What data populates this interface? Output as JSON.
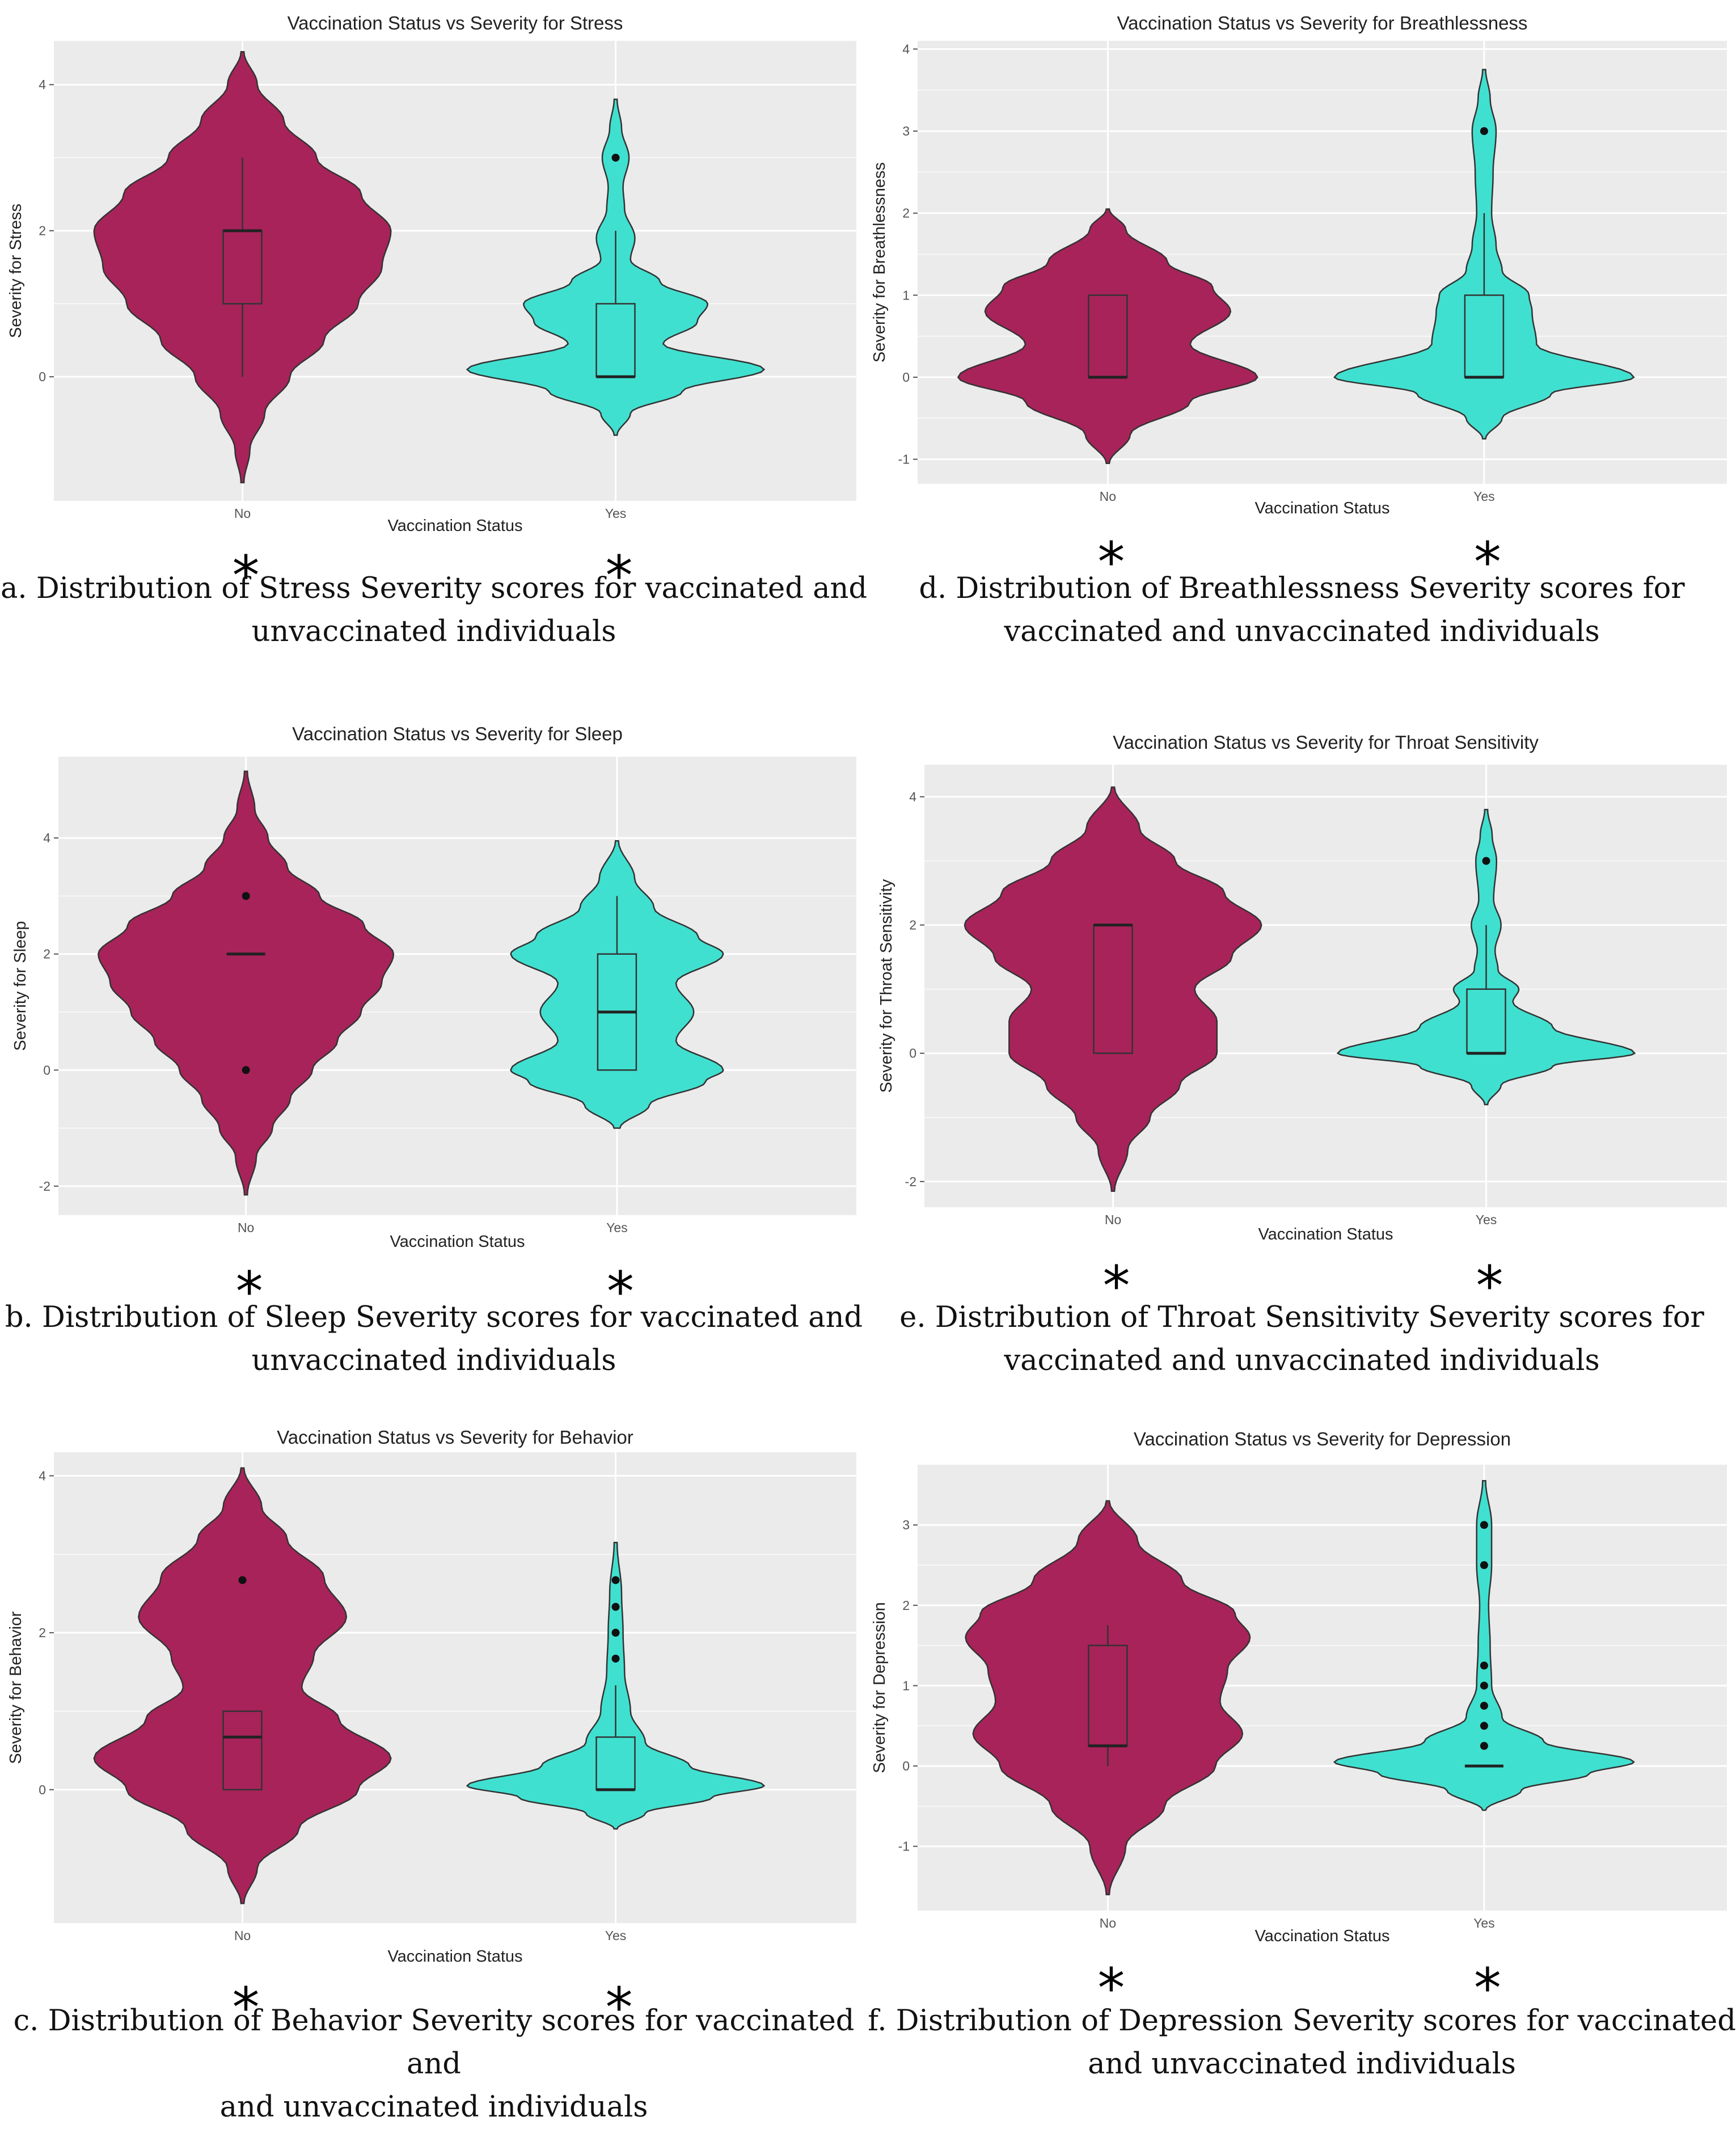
{
  "figure": {
    "colors": {
      "no": "#A8235A",
      "yes": "#40E0D0",
      "panel_bg": "#EBEBEB",
      "grid": "#FFFFFF",
      "outline": "#333333"
    },
    "asterisk": "*"
  },
  "chart_data": [
    {
      "id": "a",
      "type": "violin",
      "title": "Vaccination Status vs Severity for Stress",
      "xlabel": "Vaccination Status",
      "ylabel": "Severity for Stress",
      "categories": [
        "No",
        "Yes"
      ],
      "yticks": [
        "0",
        "2",
        "4"
      ],
      "ytick_values": [
        0,
        2,
        4
      ],
      "ylim": [
        -1.7,
        4.6
      ],
      "grid": true,
      "caption": [
        "a. Distribution of Stress Severity scores for vaccinated and",
        "unvaccinated individuals"
      ],
      "groups": [
        {
          "name": "No",
          "color": "#A8235A",
          "range": [
            -1.45,
            4.45
          ],
          "profile": [
            [
              -1.45,
              0.01
            ],
            [
              -1.0,
              0.05
            ],
            [
              -0.5,
              0.15
            ],
            [
              0,
              0.32
            ],
            [
              0.5,
              0.55
            ],
            [
              1.0,
              0.78
            ],
            [
              1.5,
              0.94
            ],
            [
              2.0,
              1.0
            ],
            [
              2.5,
              0.8
            ],
            [
              3.0,
              0.5
            ],
            [
              3.5,
              0.28
            ],
            [
              4.0,
              0.1
            ],
            [
              4.45,
              0.01
            ]
          ],
          "box": {
            "q1": 1,
            "median": 2,
            "q3": 2,
            "whisker_low": 0,
            "whisker_high": 3
          },
          "outliers": []
        },
        {
          "name": "Yes",
          "color": "#40E0D0",
          "range": [
            -0.8,
            3.8
          ],
          "profile": [
            [
              -0.8,
              0.01
            ],
            [
              -0.5,
              0.1
            ],
            [
              -0.2,
              0.45
            ],
            [
              0.1,
              1.0
            ],
            [
              0.45,
              0.32
            ],
            [
              0.75,
              0.55
            ],
            [
              1.0,
              0.62
            ],
            [
              1.3,
              0.3
            ],
            [
              1.6,
              0.1
            ],
            [
              1.9,
              0.13
            ],
            [
              2.3,
              0.06
            ],
            [
              2.6,
              0.05
            ],
            [
              3.0,
              0.09
            ],
            [
              3.4,
              0.04
            ],
            [
              3.8,
              0.01
            ]
          ],
          "box": {
            "q1": 0,
            "median": 0,
            "q3": 1,
            "whisker_low": 0,
            "whisker_high": 2
          },
          "outliers": [
            3
          ]
        }
      ]
    },
    {
      "id": "b",
      "type": "violin",
      "title": "Vaccination Status vs Severity for Sleep",
      "xlabel": "Vaccination Status",
      "ylabel": "Severity for Sleep",
      "categories": [
        "No",
        "Yes"
      ],
      "yticks": [
        "-2",
        "0",
        "2",
        "4"
      ],
      "ytick_values": [
        -2,
        0,
        2,
        4
      ],
      "ylim": [
        -2.5,
        5.4
      ],
      "grid": true,
      "caption": [
        "b. Distribution of Sleep Severity scores for vaccinated and",
        "unvaccinated individuals"
      ],
      "groups": [
        {
          "name": "No",
          "color": "#A8235A",
          "range": [
            -2.15,
            5.15
          ],
          "profile": [
            [
              -2.15,
              0.01
            ],
            [
              -1.5,
              0.07
            ],
            [
              -1.0,
              0.18
            ],
            [
              -0.5,
              0.3
            ],
            [
              0,
              0.45
            ],
            [
              0.5,
              0.62
            ],
            [
              1.0,
              0.78
            ],
            [
              1.5,
              0.92
            ],
            [
              2.0,
              1.0
            ],
            [
              2.5,
              0.8
            ],
            [
              3.0,
              0.5
            ],
            [
              3.5,
              0.28
            ],
            [
              4.0,
              0.15
            ],
            [
              4.5,
              0.06
            ],
            [
              5.15,
              0.01
            ]
          ],
          "box": {
            "q1": 2,
            "median": 2,
            "q3": 2,
            "whisker_low": 2,
            "whisker_high": 2
          },
          "outliers": [
            0,
            3
          ]
        },
        {
          "name": "Yes",
          "color": "#40E0D0",
          "range": [
            -1.0,
            3.95
          ],
          "profile": [
            [
              -1.0,
              0.02
            ],
            [
              -0.6,
              0.22
            ],
            [
              -0.2,
              0.6
            ],
            [
              0,
              0.72
            ],
            [
              0.5,
              0.4
            ],
            [
              1.0,
              0.52
            ],
            [
              1.5,
              0.4
            ],
            [
              2.0,
              0.72
            ],
            [
              2.3,
              0.55
            ],
            [
              2.8,
              0.25
            ],
            [
              3.3,
              0.12
            ],
            [
              3.95,
              0.01
            ]
          ],
          "box": {
            "q1": 0,
            "median": 1,
            "q3": 2,
            "whisker_low": 0,
            "whisker_high": 3
          },
          "outliers": []
        }
      ]
    },
    {
      "id": "c",
      "type": "violin",
      "title": "Vaccination Status vs Severity for Behavior",
      "xlabel": "Vaccination Status",
      "ylabel": "Severity for Behavior",
      "categories": [
        "No",
        "Yes"
      ],
      "yticks": [
        "0",
        "2",
        "4"
      ],
      "ytick_values": [
        0,
        2,
        4
      ],
      "ylim": [
        -1.7,
        4.3
      ],
      "grid": true,
      "caption": [
        "c. Distribution of Behavior Severity scores for vaccinated and",
        "and unvaccinated individuals"
      ],
      "groups": [
        {
          "name": "No",
          "color": "#A8235A",
          "range": [
            -1.45,
            4.1
          ],
          "profile": [
            [
              -1.45,
              0.01
            ],
            [
              -1.0,
              0.1
            ],
            [
              -0.5,
              0.38
            ],
            [
              0,
              0.78
            ],
            [
              0.4,
              1.0
            ],
            [
              0.9,
              0.65
            ],
            [
              1.3,
              0.4
            ],
            [
              1.7,
              0.48
            ],
            [
              2.2,
              0.7
            ],
            [
              2.7,
              0.55
            ],
            [
              3.2,
              0.3
            ],
            [
              3.6,
              0.13
            ],
            [
              4.1,
              0.01
            ]
          ],
          "box": {
            "q1": 0,
            "median": 0.67,
            "q3": 1,
            "whisker_low": 0,
            "whisker_high": 1
          },
          "outliers": [
            2.67
          ]
        },
        {
          "name": "Yes",
          "color": "#40E0D0",
          "range": [
            -0.5,
            3.15
          ],
          "profile": [
            [
              -0.5,
              0.01
            ],
            [
              -0.3,
              0.2
            ],
            [
              -0.1,
              0.65
            ],
            [
              0.05,
              1.0
            ],
            [
              0.3,
              0.5
            ],
            [
              0.6,
              0.2
            ],
            [
              1.0,
              0.1
            ],
            [
              1.5,
              0.06
            ],
            [
              2.0,
              0.05
            ],
            [
              2.5,
              0.04
            ],
            [
              3.15,
              0.01
            ]
          ],
          "box": {
            "q1": 0,
            "median": 0,
            "q3": 0.67,
            "whisker_low": 0,
            "whisker_high": 1.33
          },
          "outliers": [
            1.67,
            2,
            2.33,
            2.67
          ]
        }
      ]
    },
    {
      "id": "d",
      "type": "violin",
      "title": "Vaccination Status vs Severity for Breathlessness",
      "xlabel": "Vaccination Status",
      "ylabel": "Severity for Breathlessness",
      "categories": [
        "No",
        "Yes"
      ],
      "yticks": [
        "-1",
        "0",
        "1",
        "2",
        "3",
        "4"
      ],
      "ytick_values": [
        -1,
        0,
        1,
        2,
        3,
        4
      ],
      "ylim": [
        -1.3,
        4.1
      ],
      "grid": true,
      "caption": [
        "d. Distribution of Breathlessness Severity scores for",
        "vaccinated and unvaccinated individuals"
      ],
      "groups": [
        {
          "name": "No",
          "color": "#A8235A",
          "range": [
            -1.05,
            2.05
          ],
          "profile": [
            [
              -1.05,
              0.01
            ],
            [
              -0.7,
              0.15
            ],
            [
              -0.3,
              0.55
            ],
            [
              0,
              1.0
            ],
            [
              0.4,
              0.55
            ],
            [
              0.8,
              0.82
            ],
            [
              1.1,
              0.7
            ],
            [
              1.4,
              0.4
            ],
            [
              1.8,
              0.12
            ],
            [
              2.05,
              0.01
            ]
          ],
          "box": {
            "q1": 0,
            "median": 0,
            "q3": 1,
            "whisker_low": 0,
            "whisker_high": 1
          },
          "outliers": []
        },
        {
          "name": "Yes",
          "color": "#40E0D0",
          "range": [
            -0.75,
            3.75
          ],
          "profile": [
            [
              -0.75,
              0.01
            ],
            [
              -0.5,
              0.12
            ],
            [
              -0.2,
              0.45
            ],
            [
              0,
              1.0
            ],
            [
              0.4,
              0.35
            ],
            [
              0.8,
              0.32
            ],
            [
              1.0,
              0.3
            ],
            [
              1.3,
              0.12
            ],
            [
              1.6,
              0.08
            ],
            [
              2.0,
              0.05
            ],
            [
              2.5,
              0.06
            ],
            [
              3.0,
              0.08
            ],
            [
              3.4,
              0.04
            ],
            [
              3.75,
              0.01
            ]
          ],
          "box": {
            "q1": 0,
            "median": 0,
            "q3": 1,
            "whisker_low": 0,
            "whisker_high": 2
          },
          "outliers": [
            3
          ]
        }
      ]
    },
    {
      "id": "e",
      "type": "violin",
      "title": "Vaccination Status vs Severity for Throat Sensitivity",
      "xlabel": "Vaccination Status",
      "ylabel": "Severity for Throat Sensitivity",
      "categories": [
        "No",
        "Yes"
      ],
      "yticks": [
        "-2",
        "0",
        "2",
        "4"
      ],
      "ytick_values": [
        -2,
        0,
        2,
        4
      ],
      "ylim": [
        -2.4,
        4.5
      ],
      "grid": true,
      "caption": [
        "e. Distribution of Throat Sensitivity Severity scores for",
        "vaccinated and unvaccinated individuals"
      ],
      "groups": [
        {
          "name": "No",
          "color": "#A8235A",
          "range": [
            -2.15,
            4.15
          ],
          "profile": [
            [
              -2.15,
              0.01
            ],
            [
              -1.5,
              0.1
            ],
            [
              -1.0,
              0.25
            ],
            [
              -0.5,
              0.45
            ],
            [
              0,
              0.7
            ],
            [
              0.5,
              0.7
            ],
            [
              1.0,
              0.55
            ],
            [
              1.5,
              0.8
            ],
            [
              2.0,
              1.0
            ],
            [
              2.5,
              0.75
            ],
            [
              3.0,
              0.42
            ],
            [
              3.5,
              0.18
            ],
            [
              4.15,
              0.01
            ]
          ],
          "box": {
            "q1": 0,
            "median": 2,
            "q3": 2,
            "whisker_low": 0,
            "whisker_high": 2
          },
          "outliers": []
        },
        {
          "name": "Yes",
          "color": "#40E0D0",
          "range": [
            -0.8,
            3.8
          ],
          "profile": [
            [
              -0.8,
              0.01
            ],
            [
              -0.5,
              0.1
            ],
            [
              -0.2,
              0.45
            ],
            [
              0,
              1.0
            ],
            [
              0.4,
              0.45
            ],
            [
              0.8,
              0.18
            ],
            [
              1.0,
              0.22
            ],
            [
              1.3,
              0.08
            ],
            [
              1.6,
              0.06
            ],
            [
              2.0,
              0.1
            ],
            [
              2.4,
              0.05
            ],
            [
              3.0,
              0.07
            ],
            [
              3.4,
              0.04
            ],
            [
              3.8,
              0.01
            ]
          ],
          "box": {
            "q1": 0,
            "median": 0,
            "q3": 1,
            "whisker_low": 0,
            "whisker_high": 2
          },
          "outliers": [
            3
          ]
        }
      ]
    },
    {
      "id": "f",
      "type": "violin",
      "title": "Vaccination Status vs Severity for Depression",
      "xlabel": "Vaccination Status",
      "ylabel": "Severity for Depression",
      "categories": [
        "No",
        "Yes"
      ],
      "yticks": [
        "-1",
        "0",
        "1",
        "2",
        "3"
      ],
      "ytick_values": [
        -1,
        0,
        1,
        2,
        3
      ],
      "ylim": [
        -1.8,
        3.75
      ],
      "grid": true,
      "caption": [
        "f. Distribution of Depression Severity scores for vaccinated",
        "and unvaccinated individuals"
      ],
      "groups": [
        {
          "name": "No",
          "color": "#A8235A",
          "range": [
            -1.6,
            3.3
          ],
          "profile": [
            [
              -1.6,
              0.01
            ],
            [
              -1.0,
              0.12
            ],
            [
              -0.5,
              0.38
            ],
            [
              0,
              0.72
            ],
            [
              0.4,
              0.9
            ],
            [
              0.8,
              0.75
            ],
            [
              1.2,
              0.8
            ],
            [
              1.6,
              0.95
            ],
            [
              1.9,
              0.85
            ],
            [
              2.3,
              0.5
            ],
            [
              2.8,
              0.2
            ],
            [
              3.3,
              0.01
            ]
          ],
          "box": {
            "q1": 0.25,
            "median": 0.25,
            "q3": 1.5,
            "whisker_low": 0,
            "whisker_high": 1.75
          },
          "outliers": []
        },
        {
          "name": "Yes",
          "color": "#40E0D0",
          "range": [
            -0.55,
            3.55
          ],
          "profile": [
            [
              -0.55,
              0.01
            ],
            [
              -0.3,
              0.25
            ],
            [
              -0.1,
              0.7
            ],
            [
              0.05,
              1.0
            ],
            [
              0.3,
              0.4
            ],
            [
              0.6,
              0.12
            ],
            [
              1.0,
              0.05
            ],
            [
              1.5,
              0.04
            ],
            [
              2.0,
              0.03
            ],
            [
              2.5,
              0.05
            ],
            [
              3.0,
              0.05
            ],
            [
              3.55,
              0.01
            ]
          ],
          "box": {
            "q1": 0,
            "median": 0,
            "q3": 0,
            "whisker_low": 0,
            "whisker_high": 0
          },
          "outliers": [
            0.25,
            0.5,
            0.75,
            1,
            1.25,
            2.5,
            3
          ]
        }
      ]
    }
  ]
}
